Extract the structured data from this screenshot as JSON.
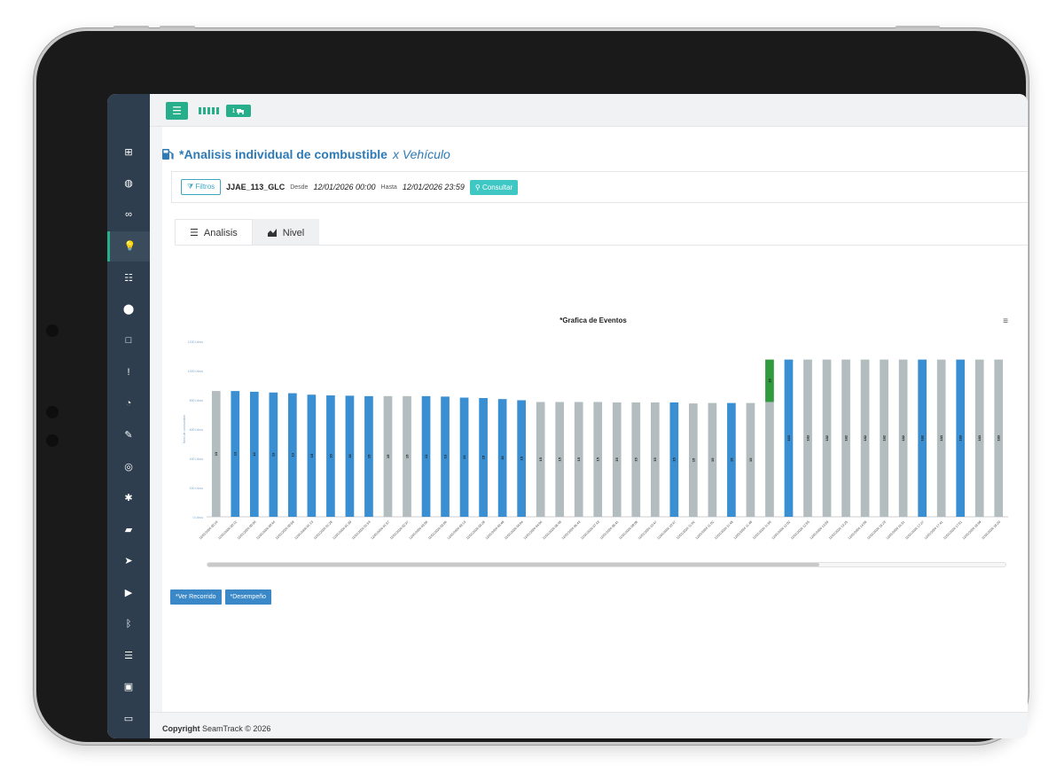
{
  "app": {
    "title": "*Analisis individual de combustible",
    "title_suffix": "x Vehículo",
    "truck_badge": "1"
  },
  "filters": {
    "filtros_label": "Filtros",
    "vehicle": "JJAE_113_GLC",
    "desde_label": "Desde",
    "desde_value": "12/01/2026 00:00",
    "hasta_label": "Hasta",
    "hasta_value": "12/01/2026 23:59",
    "consultar_label": "Consultar"
  },
  "tabs": [
    {
      "label": "Analisis",
      "icon": "list-icon",
      "active": true
    },
    {
      "label": "Nivel",
      "icon": "area-chart-icon",
      "active": false
    }
  ],
  "sidebar": {
    "icons": [
      "dashboard-icon",
      "globe-icon",
      "binoculars-icon",
      "lightbulb-icon",
      "list-icon",
      "map-pin-icon",
      "square-icon",
      "alert-icon",
      "speedometer-icon",
      "wrench-icon",
      "target-icon",
      "asterisk-icon",
      "truck-icon",
      "send-icon",
      "play-icon",
      "bluetooth-icon",
      "database-icon",
      "lock-icon",
      "credit-card-icon"
    ],
    "active_index": 3
  },
  "actions": {
    "ver_recorrido": "*Ver Recorrido",
    "desempeno": "*Desempeño"
  },
  "footer": {
    "copyright_bold": "Copyright",
    "copyright_rest": "SeamTrack © 2026"
  },
  "colors": {
    "accent": "#27ae8a",
    "bar_blue": "#3a8fd2",
    "bar_gray": "#b3bcbf",
    "bar_green": "#2f9a3e",
    "title_blue": "#2e7ab6"
  },
  "chart_data": {
    "type": "bar",
    "title": "*Grafica de Eventos",
    "ylabel": "Nivel de combustible",
    "ylim": [
      0,
      1200
    ],
    "yticks": [
      "0 Litros",
      "200 Litros",
      "400 Litros",
      "600 Litros",
      "800 Litros",
      "1000 Litros",
      "1200 Litros"
    ],
    "categories": [
      "12/01/2026 00:10",
      "12/01/2026 00:12",
      "12/01/2026 00:30",
      "12/01/2026 00:44",
      "12/01/2026 00:58",
      "12/01/2026 01:13",
      "12/01/2026 01:28",
      "12/01/2026 01:39",
      "12/01/2026 01:53",
      "12/01/2026 01:57",
      "12/01/2026 02:37",
      "12/01/2026 03:06",
      "12/01/2026 03:06",
      "12/01/2026 03:13",
      "12/01/2026 03:28",
      "12/01/2026 03:48",
      "12/01/2026 04:04",
      "12/01/2026 04:04",
      "12/01/2026 05:48",
      "12/01/2026 06:43",
      "12/01/2026 07:43",
      "12/01/2026 08:41",
      "12/01/2026 09:08",
      "12/01/2026 10:47",
      "12/01/2026 10:47",
      "12/01/2026 11:02",
      "12/01/2026 11:02",
      "12/01/2026 11:48",
      "12/01/2026 11:48",
      "12/01/2026 11:50",
      "12/01/2026 12:02",
      "12/01/2026 12:55",
      "12/01/2026 13:03",
      "12/01/2026 13:25",
      "12/01/2026 14:05",
      "12/01/2026 15:23",
      "12/01/2026 16:31",
      "12/01/2026 17:27",
      "12/01/2026 17:41",
      "12/01/2026 17:51",
      "12/01/2026 18:09",
      "12/01/2026 18:20"
    ],
    "values": [
      860,
      860,
      855,
      850,
      845,
      835,
      830,
      828,
      825,
      825,
      825,
      825,
      822,
      815,
      812,
      805,
      797,
      785,
      785,
      785,
      785,
      782,
      782,
      782,
      782,
      775,
      778,
      778,
      778,
      1075,
      1075,
      1075,
      1075,
      1075,
      1075,
      1075,
      1075,
      1075,
      1075,
      1075,
      1075,
      1075
    ],
    "colors": [
      "gray",
      "blue",
      "blue",
      "blue",
      "blue",
      "blue",
      "blue",
      "blue",
      "blue",
      "gray",
      "gray",
      "blue",
      "blue",
      "blue",
      "blue",
      "blue",
      "blue",
      "gray",
      "gray",
      "gray",
      "gray",
      "gray",
      "gray",
      "gray",
      "blue",
      "gray",
      "gray",
      "blue",
      "gray",
      "gray",
      "blue",
      "gray",
      "gray",
      "gray",
      "gray",
      "gray",
      "gray",
      "blue",
      "gray",
      "blue",
      "gray",
      "gray"
    ],
    "highlight": {
      "index": 29,
      "base": 785,
      "top": 1075,
      "color": "green"
    },
    "bar_labels": [
      "13",
      "13",
      "12",
      "13",
      "13",
      "15",
      "15",
      "15",
      "15",
      "15",
      "15",
      "13",
      "13",
      "13",
      "15",
      "15",
      "15",
      "15",
      "15",
      "15",
      "15",
      "15",
      "15",
      "15",
      "15",
      "15",
      "15",
      "15",
      "15",
      "15",
      "163",
      "183",
      "182",
      "182",
      "182",
      "182",
      "182",
      "182",
      "183",
      "183",
      "183",
      "183"
    ]
  }
}
